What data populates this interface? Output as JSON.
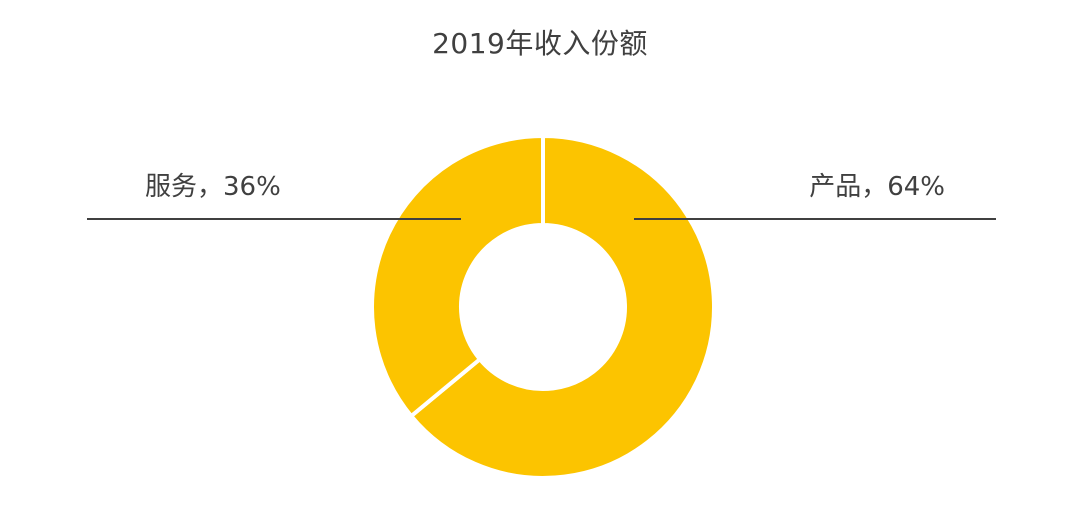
{
  "chart_data": {
    "type": "pie",
    "variant": "donut",
    "title": "2019年收入份额",
    "categories": [
      "产品",
      "服务"
    ],
    "values": [
      64,
      36
    ],
    "unit": "%",
    "data_labels": [
      "产品，64%",
      "服务，36%"
    ],
    "colors": [
      "#FCC400",
      "#FCC400"
    ],
    "label_color": "#404040",
    "leader_line_color": "#404040"
  }
}
